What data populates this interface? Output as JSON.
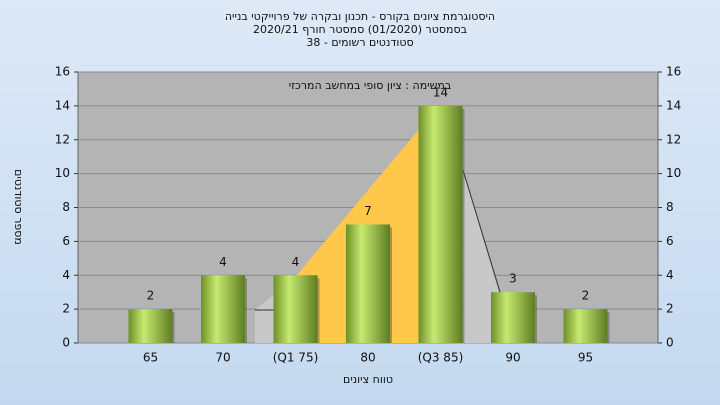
{
  "chart_data": {
    "type": "bar",
    "title": "היסטוגרמת ציונים בקורס - תכנון ובקרה של פרוייקטי בנייה",
    "subtitle": "בסמסטר  (01/2020)  סמסטר חורף  2020/21",
    "subtitle2": "סטודנטים רשומים - 38",
    "annotation": "במשימה : ציון סופי במחשב המרכזי",
    "xlabel": "טווח ציונים",
    "ylabel": "מספר סטודנטים",
    "categories": [
      "65",
      "70",
      "(Q1 75)",
      "80",
      "(Q3 85)",
      "90",
      "95"
    ],
    "values": [
      2,
      4,
      4,
      7,
      14,
      3,
      2
    ],
    "color": "#9acd3c",
    "ylim": [
      0,
      16
    ],
    "yticks": [
      0,
      2,
      4,
      6,
      8,
      10,
      12,
      14,
      16
    ],
    "grid": true
  }
}
